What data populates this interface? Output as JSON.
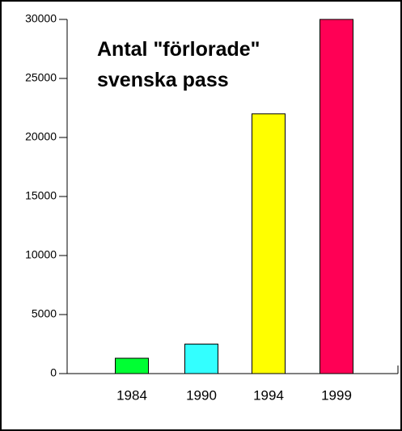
{
  "chart_data": {
    "type": "bar",
    "title": "Antal \"förlorade\" svenska pass",
    "categories": [
      "1984",
      "1990",
      "1994",
      "1999"
    ],
    "values": [
      1300,
      2500,
      22000,
      30000
    ],
    "colors": [
      "#00ff33",
      "#33ffff",
      "#ffff00",
      "#ff0055"
    ],
    "ylim": [
      0,
      30000
    ],
    "yticks": [
      0,
      5000,
      10000,
      15000,
      20000,
      25000,
      30000
    ]
  }
}
